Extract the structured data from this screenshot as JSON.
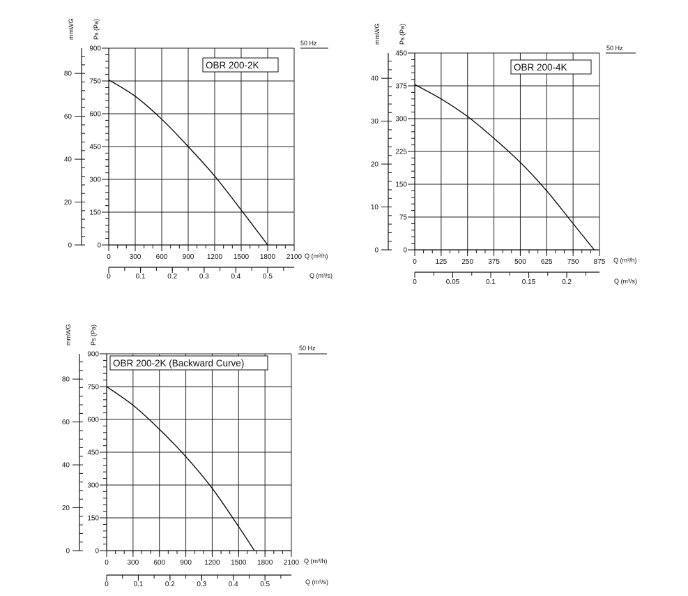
{
  "chart_data": [
    {
      "type": "line",
      "title": "OBR 200-2K",
      "frequency_label": "50 Hz",
      "ylabel": "Ps (Pa)",
      "ylabel2": "mmWG",
      "xlabel": "Q (m³/h)",
      "xlabel2": "Q (m³/s)",
      "xlim": [
        0,
        2100
      ],
      "ylim": [
        0,
        900
      ],
      "x_ticks": [
        0,
        300,
        600,
        900,
        1200,
        1500,
        1800,
        2100
      ],
      "x_tick_labels": [
        "0",
        "300",
        "600",
        "900",
        "1200",
        "1500",
        "1800",
        "2100"
      ],
      "y_ticks": [
        0,
        150,
        300,
        450,
        600,
        750,
        900
      ],
      "y_tick_labels": [
        "0",
        "150",
        "300",
        "450",
        "600",
        "750",
        "900"
      ],
      "y2_ticks": [
        0,
        20,
        40,
        60,
        80
      ],
      "y2_tick_labels": [
        "0",
        "20",
        "40",
        "60",
        "80"
      ],
      "x2_ticks": [
        0,
        0.1,
        0.2,
        0.3,
        0.4,
        0.5
      ],
      "x2_tick_labels": [
        "0",
        "0.1",
        "0.2",
        "0.3",
        "0.4",
        "0.5"
      ],
      "series": [
        {
          "x": [
            0,
            300,
            600,
            900,
            1200,
            1500,
            1800
          ],
          "y": [
            755,
            680,
            575,
            450,
            315,
            160,
            0
          ]
        }
      ],
      "grid": true
    },
    {
      "type": "line",
      "title": "OBR 200-4K",
      "frequency_label": "50 Hz",
      "ylabel": "Ps (Pa)",
      "ylabel2": "mmWG",
      "xlabel": "Q (m³/h)",
      "xlabel2": "Q (m³/s)",
      "xlim": [
        0,
        875
      ],
      "ylim": [
        0,
        450
      ],
      "x_ticks": [
        0,
        125,
        250,
        375,
        500,
        625,
        750,
        875
      ],
      "x_tick_labels": [
        "0",
        "125",
        "250",
        "375",
        "500",
        "625",
        "750",
        "875"
      ],
      "y_ticks": [
        0,
        75,
        150,
        225,
        300,
        375,
        450
      ],
      "y_tick_labels": [
        "0",
        "75",
        "150",
        "225",
        "300",
        "375",
        "450"
      ],
      "y2_ticks": [
        0,
        10,
        20,
        30,
        40
      ],
      "y2_tick_labels": [
        "0",
        "10",
        "20",
        "30",
        "40"
      ],
      "x2_ticks": [
        0,
        0.05,
        0.1,
        0.15,
        0.2
      ],
      "x2_tick_labels": [
        "0",
        "0.05",
        "0.1",
        "0.15",
        "0.2"
      ],
      "series": [
        {
          "x": [
            0,
            125,
            250,
            375,
            500,
            625,
            750,
            850
          ],
          "y": [
            378,
            345,
            305,
            255,
            200,
            135,
            60,
            0
          ]
        }
      ],
      "grid": true
    },
    {
      "type": "line",
      "title": "OBR 200-2K  (Backward Curve)",
      "frequency_label": "50 Hz",
      "ylabel": "Ps (Pa)",
      "ylabel2": "mmWG",
      "xlabel": "Q (m³/h)",
      "xlabel2": "Q (m³/s)",
      "xlim": [
        0,
        2100
      ],
      "ylim": [
        0,
        900
      ],
      "x_ticks": [
        0,
        300,
        600,
        900,
        1200,
        1500,
        1800,
        2100
      ],
      "x_tick_labels": [
        "0",
        "300",
        "600",
        "900",
        "1200",
        "1500",
        "1800",
        "2100"
      ],
      "y_ticks": [
        0,
        150,
        300,
        450,
        600,
        750,
        900
      ],
      "y_tick_labels": [
        "0",
        "150",
        "300",
        "450",
        "600",
        "750",
        "900"
      ],
      "y2_ticks": [
        0,
        20,
        40,
        60,
        80
      ],
      "y2_tick_labels": [
        "0",
        "20",
        "40",
        "60",
        "80"
      ],
      "x2_ticks": [
        0,
        0.1,
        0.2,
        0.3,
        0.4,
        0.5
      ],
      "x2_tick_labels": [
        "0",
        "0.1",
        "0.2",
        "0.3",
        "0.4",
        "0.5"
      ],
      "series": [
        {
          "x": [
            0,
            300,
            600,
            900,
            1200,
            1500,
            1680
          ],
          "y": [
            750,
            665,
            555,
            430,
            285,
            110,
            0
          ]
        }
      ],
      "grid": true
    }
  ]
}
